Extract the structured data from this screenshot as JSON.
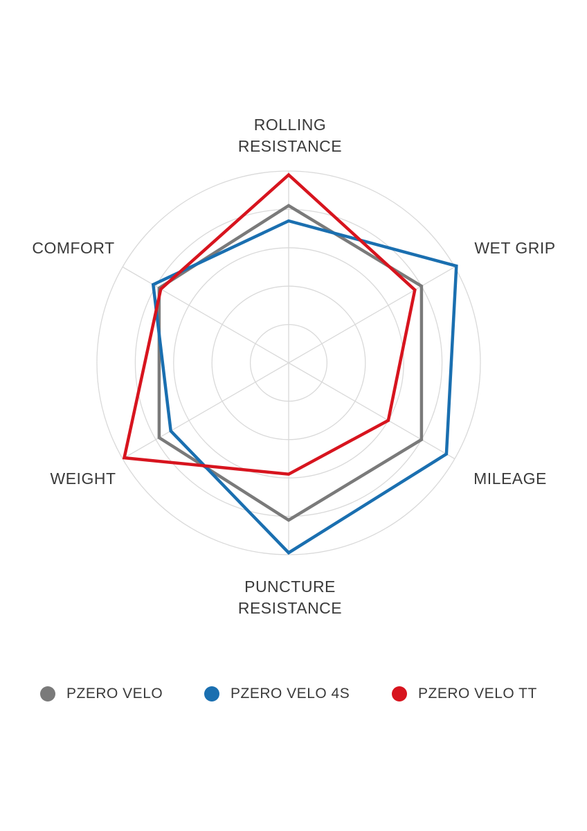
{
  "chart_data": {
    "type": "radar",
    "axes": [
      [
        "ROLLING",
        "RESISTANCE"
      ],
      [
        "WET GRIP"
      ],
      [
        "MILEAGE"
      ],
      [
        "PUNCTURE",
        "RESISTANCE"
      ],
      [
        "WEIGHT"
      ],
      [
        "COMFORT"
      ]
    ],
    "rmax": 5,
    "rings": 5,
    "series": [
      {
        "name": "PZERO VELO",
        "color": "#7a7a7a",
        "values": [
          4.1,
          4.0,
          4.0,
          4.1,
          3.9,
          3.9
        ]
      },
      {
        "name": "PZERO VELO 4S",
        "color": "#1a6fb0",
        "values": [
          3.7,
          5.05,
          4.75,
          4.95,
          3.55,
          4.08
        ]
      },
      {
        "name": "PZERO VELO TT",
        "color": "#d7141e",
        "values": [
          4.9,
          3.8,
          3.0,
          2.9,
          4.95,
          3.85
        ]
      }
    ],
    "grid": true
  },
  "colors": {
    "grid": "#d9d9d9",
    "text": "#3a3a3a"
  }
}
